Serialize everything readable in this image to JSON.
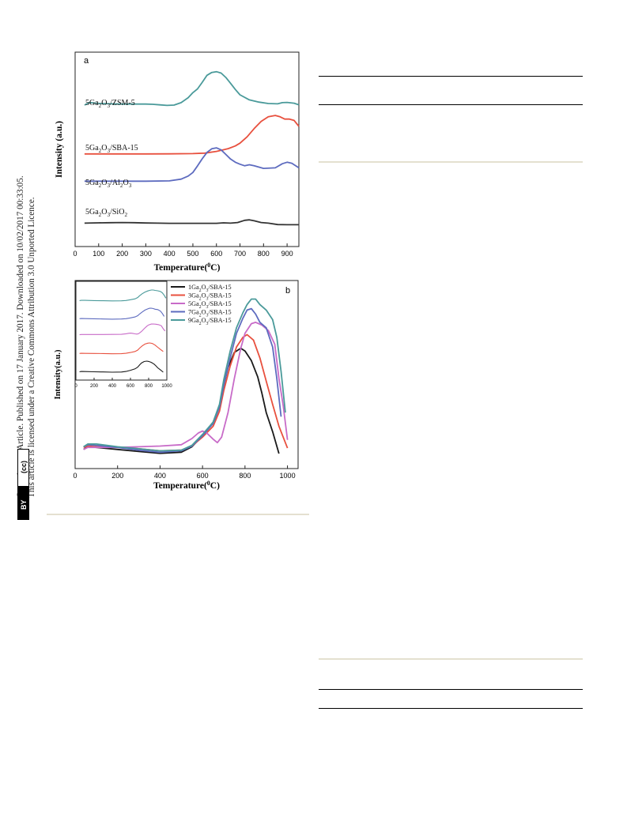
{
  "sidebar": {
    "line1": "Open Access Article. Published on 17 January 2017. Downloaded on 10/02/2017 00:33:05.",
    "line2": "This article is licensed under a Creative Commons Attribution 3.0 Unported Licence.",
    "badge_cc": "(cc)",
    "badge_by": "BY"
  },
  "chart_data": [
    {
      "type": "line",
      "panel_label": "a",
      "xlabel": "Temperature(⁰C)",
      "ylabel": "Intensity (a.u.)",
      "xlim": [
        0,
        950
      ],
      "xticks": [
        0,
        100,
        200,
        300,
        400,
        500,
        600,
        700,
        800,
        900
      ],
      "yticks": [],
      "legend": "none",
      "series": [
        {
          "name_parts": [
            "5Ga",
            "2",
            "O",
            "3",
            "/ZSM-5"
          ],
          "color": "#4a9a9a",
          "x": [
            40,
            60,
            100,
            150,
            200,
            250,
            300,
            330,
            360,
            390,
            420,
            450,
            480,
            500,
            520,
            540,
            560,
            580,
            600,
            620,
            640,
            660,
            680,
            700,
            740,
            780,
            820,
            860,
            880,
            900,
            930,
            950
          ],
          "y": [
            0.93,
            1.16,
            1.08,
            1.04,
            1.03,
            1.02,
            1.02,
            1.0,
            0.95,
            0.9,
            0.93,
            1.15,
            1.6,
            2.05,
            2.4,
            3.0,
            3.62,
            3.88,
            3.95,
            3.82,
            3.42,
            2.9,
            2.34,
            1.86,
            1.4,
            1.2,
            1.07,
            1.04,
            1.15,
            1.17,
            1.1,
            0.95
          ]
        },
        {
          "name_parts": [
            "5Ga",
            "2",
            "O",
            "3",
            "/SBA-15"
          ],
          "color": "#e8503e",
          "x": [
            40,
            100,
            200,
            300,
            400,
            500,
            550,
            600,
            650,
            680,
            700,
            730,
            760,
            790,
            820,
            850,
            870,
            890,
            910,
            930,
            950
          ],
          "y": [
            0.02,
            0.02,
            0.02,
            0.02,
            0.03,
            0.05,
            0.1,
            0.3,
            0.6,
            0.9,
            1.2,
            1.9,
            2.8,
            3.6,
            4.1,
            4.25,
            4.1,
            3.85,
            3.85,
            3.7,
            3.05
          ]
        },
        {
          "name_parts": [
            "5Ga",
            "2",
            "O",
            "3",
            "/Al",
            "2",
            "O",
            "3"
          ],
          "color": "#5d6bbf",
          "x": [
            40,
            100,
            200,
            300,
            400,
            450,
            480,
            500,
            520,
            540,
            560,
            580,
            600,
            620,
            640,
            660,
            680,
            700,
            720,
            740,
            760,
            800,
            850,
            880,
            900,
            920,
            950
          ],
          "y": [
            -0.1,
            -0.1,
            -0.1,
            -0.1,
            -0.07,
            0.1,
            0.4,
            0.75,
            1.4,
            2.1,
            2.7,
            3.05,
            3.15,
            2.95,
            2.5,
            2.05,
            1.75,
            1.55,
            1.4,
            1.5,
            1.4,
            1.15,
            1.2,
            1.6,
            1.75,
            1.65,
            1.2
          ]
        },
        {
          "name_parts": [
            "5Ga",
            "2",
            "O",
            "3",
            "/SiO",
            "2"
          ],
          "color": "#333333",
          "x": [
            40,
            100,
            150,
            200,
            250,
            300,
            350,
            400,
            450,
            500,
            550,
            600,
            630,
            660,
            690,
            720,
            740,
            760,
            790,
            820,
            860,
            900,
            950
          ],
          "y": [
            0.05,
            0.08,
            0.1,
            0.12,
            0.1,
            0.07,
            0.05,
            0.03,
            0.03,
            0.03,
            0.03,
            0.03,
            0.08,
            0.05,
            0.12,
            0.35,
            0.4,
            0.3,
            0.12,
            0.05,
            -0.1,
            -0.12,
            -0.12
          ]
        }
      ]
    },
    {
      "type": "line",
      "panel_label": "b",
      "xlabel": "Temperature(⁰C)",
      "ylabel": "Intensity(a.u.)",
      "xlim": [
        0,
        1050
      ],
      "xticks": [
        0,
        200,
        400,
        600,
        800,
        1000
      ],
      "yticks": [],
      "legend": "top-right",
      "series": [
        {
          "name": "1Ga2O3/SBA-15",
          "color": "#1a1a1a",
          "x": [
            40,
            60,
            100,
            200,
            300,
            400,
            500,
            550,
            600,
            650,
            680,
            700,
            720,
            750,
            780,
            800,
            830,
            860,
            880,
            900,
            930,
            960
          ],
          "y": [
            0.3,
            0.5,
            0.45,
            0.3,
            0.15,
            0.02,
            0.1,
            0.5,
            1.3,
            2.3,
            3.5,
            5.0,
            6.3,
            7.4,
            7.7,
            7.5,
            6.8,
            5.6,
            4.4,
            3.0,
            1.6,
            0.0
          ]
        },
        {
          "name": "3Ga2O3/SBA-15",
          "color": "#e8503e",
          "x": [
            40,
            60,
            100,
            200,
            300,
            400,
            500,
            550,
            600,
            650,
            680,
            700,
            730,
            760,
            790,
            810,
            840,
            870,
            900,
            930,
            960,
            1000
          ],
          "y": [
            0.45,
            0.55,
            0.5,
            0.45,
            0.35,
            0.2,
            0.25,
            0.55,
            1.2,
            2.0,
            3.1,
            4.6,
            6.4,
            7.8,
            8.5,
            8.7,
            8.3,
            7.0,
            5.3,
            3.6,
            2.0,
            0.4
          ]
        },
        {
          "name": "5Ga2O3/SBA-15",
          "color": "#c86bc8",
          "x": [
            40,
            60,
            100,
            200,
            300,
            400,
            500,
            550,
            580,
            600,
            620,
            650,
            670,
            690,
            720,
            750,
            780,
            800,
            830,
            850,
            880,
            910,
            940,
            960,
            980,
            1000
          ],
          "y": [
            0.3,
            0.45,
            0.45,
            0.45,
            0.5,
            0.55,
            0.65,
            1.1,
            1.5,
            1.65,
            1.5,
            1.05,
            0.8,
            1.2,
            3.0,
            5.5,
            7.7,
            8.8,
            9.5,
            9.6,
            9.4,
            9.0,
            8.0,
            5.5,
            3.5,
            1.0
          ]
        },
        {
          "name": "7Ga2O3/SBA-15",
          "color": "#5d6bbf",
          "x": [
            40,
            60,
            100,
            200,
            300,
            400,
            500,
            550,
            600,
            650,
            680,
            700,
            730,
            760,
            790,
            810,
            830,
            850,
            870,
            900,
            930,
            950,
            970
          ],
          "y": [
            0.5,
            0.65,
            0.6,
            0.45,
            0.25,
            0.1,
            0.2,
            0.55,
            1.3,
            2.2,
            3.4,
            5.0,
            7.0,
            8.8,
            9.9,
            10.5,
            10.6,
            10.2,
            9.6,
            9.2,
            7.8,
            5.5,
            2.7
          ]
        },
        {
          "name": "9Ga2O3/SBA-15",
          "color": "#4a9a9a",
          "x": [
            40,
            60,
            100,
            200,
            300,
            400,
            500,
            550,
            600,
            650,
            680,
            700,
            730,
            760,
            790,
            810,
            830,
            850,
            870,
            900,
            930,
            950,
            970,
            990
          ],
          "y": [
            0.5,
            0.7,
            0.7,
            0.5,
            0.35,
            0.2,
            0.25,
            0.6,
            1.4,
            2.3,
            3.6,
            5.4,
            7.5,
            9.2,
            10.3,
            10.9,
            11.3,
            11.3,
            10.9,
            10.5,
            9.8,
            8.5,
            6.0,
            3.0
          ]
        }
      ],
      "inset": {
        "xlim": [
          0,
          1000
        ],
        "xticks": [
          0,
          200,
          400,
          600,
          800,
          1000
        ],
        "note": "stacked versions of the same five series"
      }
    }
  ]
}
